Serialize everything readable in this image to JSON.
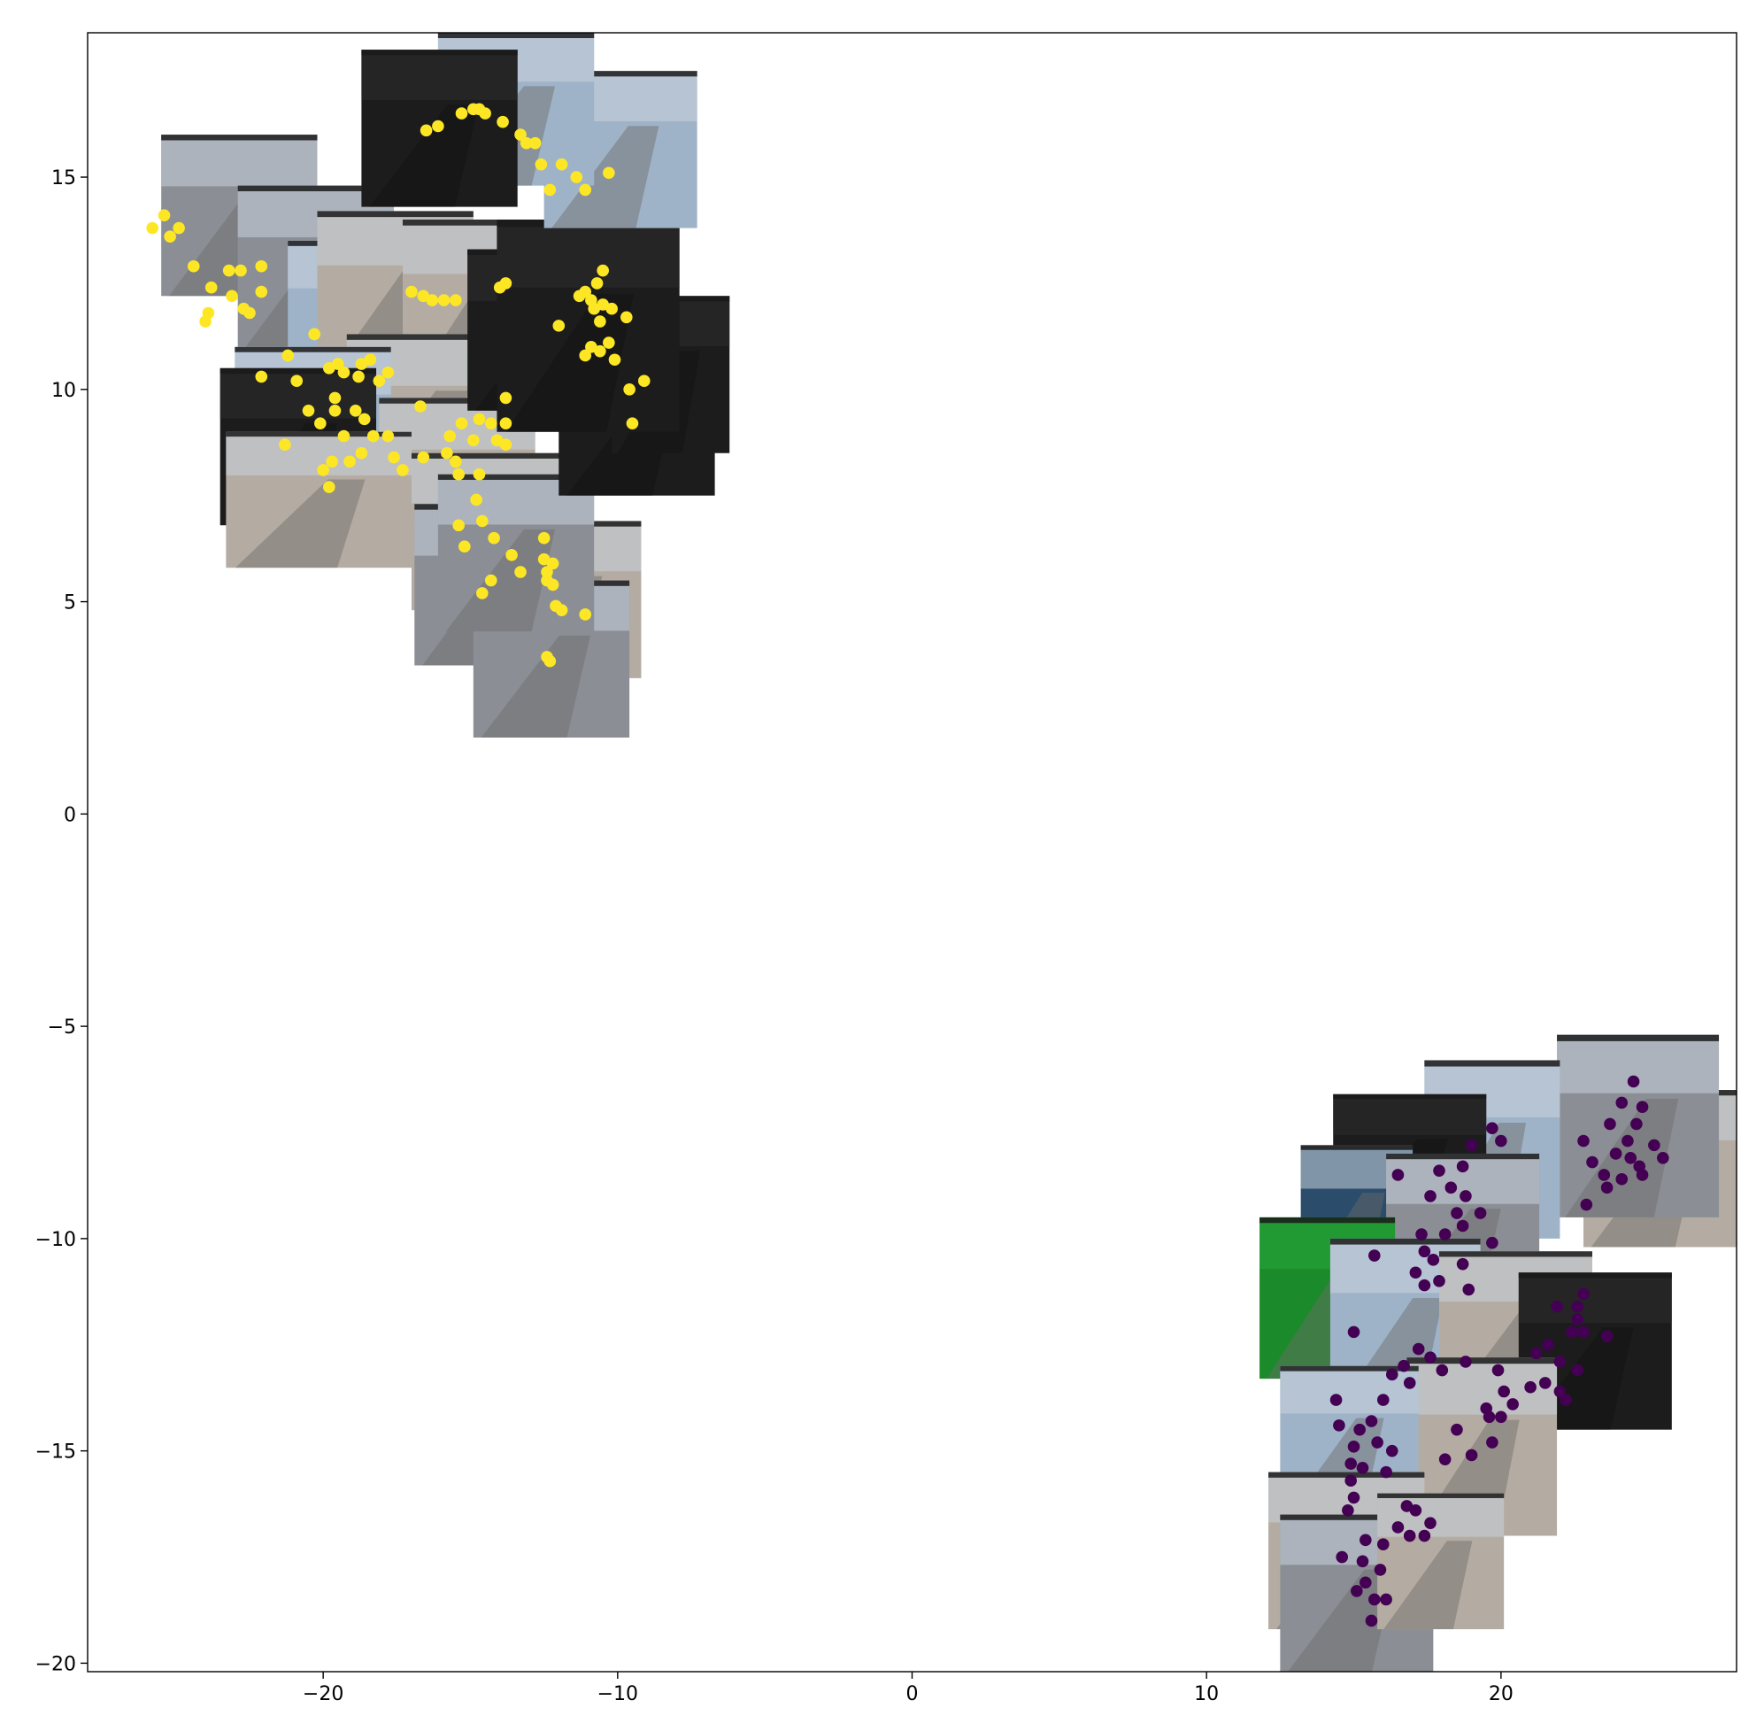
{
  "chart_data": {
    "type": "scatter",
    "title": "",
    "xlabel": "",
    "ylabel": "",
    "xlim": [
      -28,
      28
    ],
    "ylim": [
      -20.2,
      18.4
    ],
    "xticks": [
      -20,
      -10,
      0,
      10,
      20
    ],
    "yticks": [
      -20,
      -15,
      -10,
      -5,
      0,
      5,
      10,
      15
    ],
    "xtick_labels": [
      "−20",
      "−10",
      "0",
      "10",
      "20"
    ],
    "ytick_labels": [
      "−20",
      "−15",
      "−10",
      "−5",
      "0",
      "5",
      "10",
      "15"
    ],
    "grid": false,
    "legend": "none",
    "note_markers": "Points overlaid on thumbnail image tiles (webcam frames) placed near each cluster.",
    "thumbnail_palette": {
      "dark_night": "#1c1c1c",
      "overcast_road": "#8b8f95",
      "beach_sky": "#9fb3c8",
      "sandy": "#b4aca2",
      "green_tint": "#1b8a2a",
      "blue_water": "#2b4d6b"
    },
    "thumbnail_tiles": [
      {
        "x0": -25.5,
        "x1": -20.2,
        "y0": 12.2,
        "y1": 16.0,
        "tone": "overcast_road"
      },
      {
        "x0": -22.9,
        "x1": -17.6,
        "y0": 11.0,
        "y1": 14.8,
        "tone": "overcast_road"
      },
      {
        "x0": -21.2,
        "x1": -15.9,
        "y0": 10.0,
        "y1": 13.5,
        "tone": "beach_sky"
      },
      {
        "x0": -20.2,
        "x1": -14.9,
        "y0": 10.2,
        "y1": 14.2,
        "tone": "sandy"
      },
      {
        "x0": -17.3,
        "x1": -12.4,
        "y0": 10.0,
        "y1": 14.0,
        "tone": "sandy"
      },
      {
        "x0": -19.2,
        "x1": -13.7,
        "y0": 7.5,
        "y1": 11.3,
        "tone": "sandy"
      },
      {
        "x0": -23.0,
        "x1": -17.7,
        "y0": 7.5,
        "y1": 11.0,
        "tone": "beach_sky"
      },
      {
        "x0": -23.5,
        "x1": -18.2,
        "y0": 6.8,
        "y1": 10.5,
        "tone": "dark_night"
      },
      {
        "x0": -18.1,
        "x1": -12.8,
        "y0": 6.0,
        "y1": 9.8,
        "tone": "sandy"
      },
      {
        "x0": -17.0,
        "x1": -11.7,
        "y0": 4.8,
        "y1": 8.5,
        "tone": "sandy"
      },
      {
        "x0": -16.9,
        "x1": -11.6,
        "y0": 3.5,
        "y1": 7.3,
        "tone": "overcast_road"
      },
      {
        "x0": -14.5,
        "x1": -9.2,
        "y0": 3.2,
        "y1": 6.9,
        "tone": "sandy"
      },
      {
        "x0": -14.9,
        "x1": -9.6,
        "y0": 1.8,
        "y1": 5.5,
        "tone": "overcast_road"
      },
      {
        "x0": -16.1,
        "x1": -10.8,
        "y0": 4.3,
        "y1": 8.0,
        "tone": "overcast_road"
      },
      {
        "x0": -12.0,
        "x1": -6.7,
        "y0": 7.5,
        "y1": 11.2,
        "tone": "dark_night"
      },
      {
        "x0": -10.2,
        "x1": -6.2,
        "y0": 8.5,
        "y1": 12.2,
        "tone": "dark_night"
      },
      {
        "x0": -15.1,
        "x1": -9.8,
        "y0": 9.5,
        "y1": 13.3,
        "tone": "dark_night"
      },
      {
        "x0": -14.1,
        "x1": -7.9,
        "y0": 9.0,
        "y1": 14.0,
        "tone": "dark_night"
      },
      {
        "x0": -12.5,
        "x1": -7.3,
        "y0": 13.8,
        "y1": 17.5,
        "tone": "beach_sky"
      },
      {
        "x0": -16.1,
        "x1": -10.8,
        "y0": 14.8,
        "y1": 18.4,
        "tone": "beach_sky"
      },
      {
        "x0": -18.7,
        "x1": -13.4,
        "y0": 14.3,
        "y1": 18.0,
        "tone": "dark_night"
      },
      {
        "x0": -23.3,
        "x1": -17.0,
        "y0": 5.8,
        "y1": 9.0,
        "tone": "sandy"
      },
      {
        "x0": 22.8,
        "x1": 28.0,
        "y0": -10.2,
        "y1": -6.5,
        "tone": "sandy"
      },
      {
        "x0": 21.9,
        "x1": 27.4,
        "y0": -9.5,
        "y1": -5.2,
        "tone": "overcast_road"
      },
      {
        "x0": 17.4,
        "x1": 22.0,
        "y0": -10.0,
        "y1": -5.8,
        "tone": "beach_sky"
      },
      {
        "x0": 14.3,
        "x1": 19.5,
        "y0": -9.6,
        "y1": -6.6,
        "tone": "dark_night"
      },
      {
        "x0": 13.2,
        "x1": 17.0,
        "y0": -11.0,
        "y1": -7.8,
        "tone": "blue_water"
      },
      {
        "x0": 16.1,
        "x1": 21.3,
        "y0": -11.7,
        "y1": -8.0,
        "tone": "overcast_road"
      },
      {
        "x0": 11.8,
        "x1": 16.4,
        "y0": -13.3,
        "y1": -9.5,
        "tone": "green_tint"
      },
      {
        "x0": 14.2,
        "x1": 19.3,
        "y0": -14.0,
        "y1": -10.0,
        "tone": "beach_sky"
      },
      {
        "x0": 17.9,
        "x1": 23.1,
        "y0": -14.0,
        "y1": -10.3,
        "tone": "sandy"
      },
      {
        "x0": 20.6,
        "x1": 25.8,
        "y0": -14.5,
        "y1": -10.8,
        "tone": "dark_night"
      },
      {
        "x0": 16.8,
        "x1": 21.9,
        "y0": -17.0,
        "y1": -12.8,
        "tone": "sandy"
      },
      {
        "x0": 12.5,
        "x1": 17.2,
        "y0": -16.5,
        "y1": -13.0,
        "tone": "beach_sky"
      },
      {
        "x0": 12.1,
        "x1": 17.4,
        "y0": -19.2,
        "y1": -15.5,
        "tone": "sandy"
      },
      {
        "x0": 12.5,
        "x1": 17.7,
        "y0": -20.2,
        "y1": -16.5,
        "tone": "overcast_road"
      },
      {
        "x0": 15.8,
        "x1": 20.1,
        "y0": -19.2,
        "y1": -16.0,
        "tone": "sandy"
      }
    ],
    "series": [
      {
        "color": "#fde725",
        "points": [
          [
            -14.9,
            16.6
          ],
          [
            -14.5,
            16.5
          ],
          [
            -15.3,
            16.5
          ],
          [
            -14.7,
            16.6
          ],
          [
            -13.9,
            16.3
          ],
          [
            -13.3,
            16.0
          ],
          [
            -13.1,
            15.8
          ],
          [
            -12.8,
            15.8
          ],
          [
            -16.5,
            16.1
          ],
          [
            -16.1,
            16.2
          ],
          [
            -12.6,
            15.3
          ],
          [
            -11.9,
            15.3
          ],
          [
            -11.4,
            15.0
          ],
          [
            -10.3,
            15.1
          ],
          [
            -11.1,
            14.7
          ],
          [
            -12.3,
            14.7
          ],
          [
            -25.4,
            14.1
          ],
          [
            -25.8,
            13.8
          ],
          [
            -25.2,
            13.6
          ],
          [
            -24.9,
            13.8
          ],
          [
            -24.4,
            12.9
          ],
          [
            -23.2,
            12.8
          ],
          [
            -22.8,
            12.8
          ],
          [
            -22.1,
            12.9
          ],
          [
            -23.8,
            12.4
          ],
          [
            -23.1,
            12.2
          ],
          [
            -22.7,
            11.9
          ],
          [
            -22.5,
            11.8
          ],
          [
            -22.1,
            12.3
          ],
          [
            -23.9,
            11.8
          ],
          [
            -24.0,
            11.6
          ],
          [
            -17.0,
            12.3
          ],
          [
            -16.6,
            12.2
          ],
          [
            -16.3,
            12.1
          ],
          [
            -15.9,
            12.1
          ],
          [
            -15.5,
            12.1
          ],
          [
            -14.0,
            12.4
          ],
          [
            -13.8,
            12.5
          ],
          [
            -10.5,
            12.8
          ],
          [
            -10.7,
            12.5
          ],
          [
            -11.1,
            12.3
          ],
          [
            -11.3,
            12.2
          ],
          [
            -10.9,
            12.1
          ],
          [
            -10.5,
            12.0
          ],
          [
            -10.8,
            11.9
          ],
          [
            -10.2,
            11.9
          ],
          [
            -9.7,
            11.7
          ],
          [
            -10.6,
            11.6
          ],
          [
            -12.0,
            11.5
          ],
          [
            -10.3,
            11.1
          ],
          [
            -10.9,
            11.0
          ],
          [
            -10.6,
            10.9
          ],
          [
            -10.1,
            10.7
          ],
          [
            -11.1,
            10.8
          ],
          [
            -9.6,
            10.0
          ],
          [
            -9.1,
            10.2
          ],
          [
            -9.5,
            9.2
          ],
          [
            -13.8,
            9.8
          ],
          [
            -20.3,
            11.3
          ],
          [
            -21.2,
            10.8
          ],
          [
            -22.1,
            10.3
          ],
          [
            -20.9,
            10.2
          ],
          [
            -19.8,
            10.5
          ],
          [
            -19.5,
            10.6
          ],
          [
            -19.3,
            10.4
          ],
          [
            -18.7,
            10.6
          ],
          [
            -18.4,
            10.7
          ],
          [
            -17.8,
            10.4
          ],
          [
            -18.8,
            10.3
          ],
          [
            -18.1,
            10.2
          ],
          [
            -19.6,
            9.8
          ],
          [
            -20.5,
            9.5
          ],
          [
            -19.6,
            9.5
          ],
          [
            -18.6,
            9.3
          ],
          [
            -18.9,
            9.5
          ],
          [
            -20.1,
            9.2
          ],
          [
            -18.3,
            8.9
          ],
          [
            -19.3,
            8.9
          ],
          [
            -21.3,
            8.7
          ],
          [
            -18.7,
            8.5
          ],
          [
            -17.6,
            8.4
          ],
          [
            -19.7,
            8.3
          ],
          [
            -19.1,
            8.3
          ],
          [
            -20.0,
            8.1
          ],
          [
            -17.3,
            8.1
          ],
          [
            -16.7,
            9.6
          ],
          [
            -17.8,
            8.9
          ],
          [
            -16.6,
            8.4
          ],
          [
            -19.8,
            7.7
          ],
          [
            -15.8,
            8.5
          ],
          [
            -15.5,
            8.3
          ],
          [
            -15.7,
            8.9
          ],
          [
            -15.3,
            9.2
          ],
          [
            -14.7,
            9.3
          ],
          [
            -14.3,
            9.2
          ],
          [
            -13.8,
            9.2
          ],
          [
            -14.1,
            8.8
          ],
          [
            -14.9,
            8.8
          ],
          [
            -15.4,
            8.0
          ],
          [
            -14.7,
            8.0
          ],
          [
            -13.8,
            8.7
          ],
          [
            -14.8,
            7.4
          ],
          [
            -15.4,
            6.8
          ],
          [
            -14.6,
            6.9
          ],
          [
            -14.2,
            6.5
          ],
          [
            -15.2,
            6.3
          ],
          [
            -13.6,
            6.1
          ],
          [
            -12.5,
            6.5
          ],
          [
            -12.5,
            6.0
          ],
          [
            -12.2,
            5.9
          ],
          [
            -13.3,
            5.7
          ],
          [
            -12.4,
            5.7
          ],
          [
            -12.4,
            5.5
          ],
          [
            -12.2,
            5.4
          ],
          [
            -14.3,
            5.5
          ],
          [
            -14.6,
            5.2
          ],
          [
            -12.1,
            4.9
          ],
          [
            -11.9,
            4.8
          ],
          [
            -11.1,
            4.7
          ],
          [
            -12.4,
            3.7
          ],
          [
            -12.3,
            3.6
          ]
        ]
      },
      {
        "color": "#440154",
        "points": [
          [
            24.5,
            -6.3
          ],
          [
            24.1,
            -6.8
          ],
          [
            24.8,
            -6.9
          ],
          [
            23.7,
            -7.3
          ],
          [
            24.6,
            -7.3
          ],
          [
            22.8,
            -7.7
          ],
          [
            24.3,
            -7.7
          ],
          [
            25.2,
            -7.8
          ],
          [
            23.9,
            -8.0
          ],
          [
            24.4,
            -8.1
          ],
          [
            25.5,
            -8.1
          ],
          [
            23.1,
            -8.2
          ],
          [
            24.7,
            -8.3
          ],
          [
            23.5,
            -8.5
          ],
          [
            24.1,
            -8.6
          ],
          [
            24.8,
            -8.5
          ],
          [
            23.6,
            -8.8
          ],
          [
            22.9,
            -9.2
          ],
          [
            20.0,
            -7.7
          ],
          [
            19.7,
            -7.4
          ],
          [
            19.0,
            -7.8
          ],
          [
            18.7,
            -8.3
          ],
          [
            17.9,
            -8.4
          ],
          [
            18.3,
            -8.8
          ],
          [
            18.8,
            -9.0
          ],
          [
            17.6,
            -9.0
          ],
          [
            18.5,
            -9.4
          ],
          [
            19.3,
            -9.4
          ],
          [
            18.7,
            -9.7
          ],
          [
            17.3,
            -9.9
          ],
          [
            18.1,
            -9.9
          ],
          [
            17.4,
            -10.3
          ],
          [
            19.7,
            -10.1
          ],
          [
            17.7,
            -10.5
          ],
          [
            17.1,
            -10.8
          ],
          [
            17.4,
            -11.1
          ],
          [
            17.9,
            -11.0
          ],
          [
            18.9,
            -11.2
          ],
          [
            18.7,
            -10.6
          ],
          [
            16.5,
            -8.5
          ],
          [
            15.7,
            -10.4
          ],
          [
            15.0,
            -12.2
          ],
          [
            17.2,
            -12.6
          ],
          [
            17.6,
            -12.8
          ],
          [
            18.8,
            -12.9
          ],
          [
            21.6,
            -12.5
          ],
          [
            22.4,
            -12.2
          ],
          [
            22.8,
            -12.2
          ],
          [
            22.6,
            -11.6
          ],
          [
            21.9,
            -11.6
          ],
          [
            22.8,
            -11.3
          ],
          [
            22.6,
            -11.9
          ],
          [
            23.6,
            -12.3
          ],
          [
            22.0,
            -12.9
          ],
          [
            22.6,
            -13.1
          ],
          [
            21.5,
            -13.4
          ],
          [
            21.0,
            -13.5
          ],
          [
            22.0,
            -13.6
          ],
          [
            20.4,
            -13.9
          ],
          [
            20.1,
            -13.6
          ],
          [
            19.9,
            -13.1
          ],
          [
            22.2,
            -13.8
          ],
          [
            19.5,
            -14.0
          ],
          [
            19.6,
            -14.2
          ],
          [
            20.0,
            -14.2
          ],
          [
            19.7,
            -14.8
          ],
          [
            19.0,
            -15.1
          ],
          [
            18.1,
            -15.2
          ],
          [
            18.5,
            -14.5
          ],
          [
            21.2,
            -12.7
          ],
          [
            18.0,
            -13.1
          ],
          [
            16.9,
            -13.4
          ],
          [
            16.7,
            -13.0
          ],
          [
            16.3,
            -13.2
          ],
          [
            14.4,
            -13.8
          ],
          [
            14.5,
            -14.4
          ],
          [
            15.6,
            -14.3
          ],
          [
            16.0,
            -13.8
          ],
          [
            15.2,
            -14.5
          ],
          [
            15.0,
            -14.9
          ],
          [
            15.8,
            -14.8
          ],
          [
            16.3,
            -15.0
          ],
          [
            14.9,
            -15.3
          ],
          [
            15.3,
            -15.4
          ],
          [
            16.1,
            -15.5
          ],
          [
            14.9,
            -15.7
          ],
          [
            15.0,
            -16.1
          ],
          [
            14.8,
            -16.4
          ],
          [
            16.8,
            -16.3
          ],
          [
            17.1,
            -16.4
          ],
          [
            17.6,
            -16.7
          ],
          [
            16.5,
            -16.8
          ],
          [
            16.9,
            -17.0
          ],
          [
            17.4,
            -17.0
          ],
          [
            16.0,
            -17.2
          ],
          [
            15.4,
            -17.1
          ],
          [
            15.3,
            -17.6
          ],
          [
            14.6,
            -17.5
          ],
          [
            15.9,
            -17.8
          ],
          [
            15.4,
            -18.1
          ],
          [
            15.1,
            -18.3
          ],
          [
            15.7,
            -18.5
          ],
          [
            16.1,
            -18.5
          ],
          [
            15.6,
            -19.0
          ]
        ]
      }
    ]
  }
}
